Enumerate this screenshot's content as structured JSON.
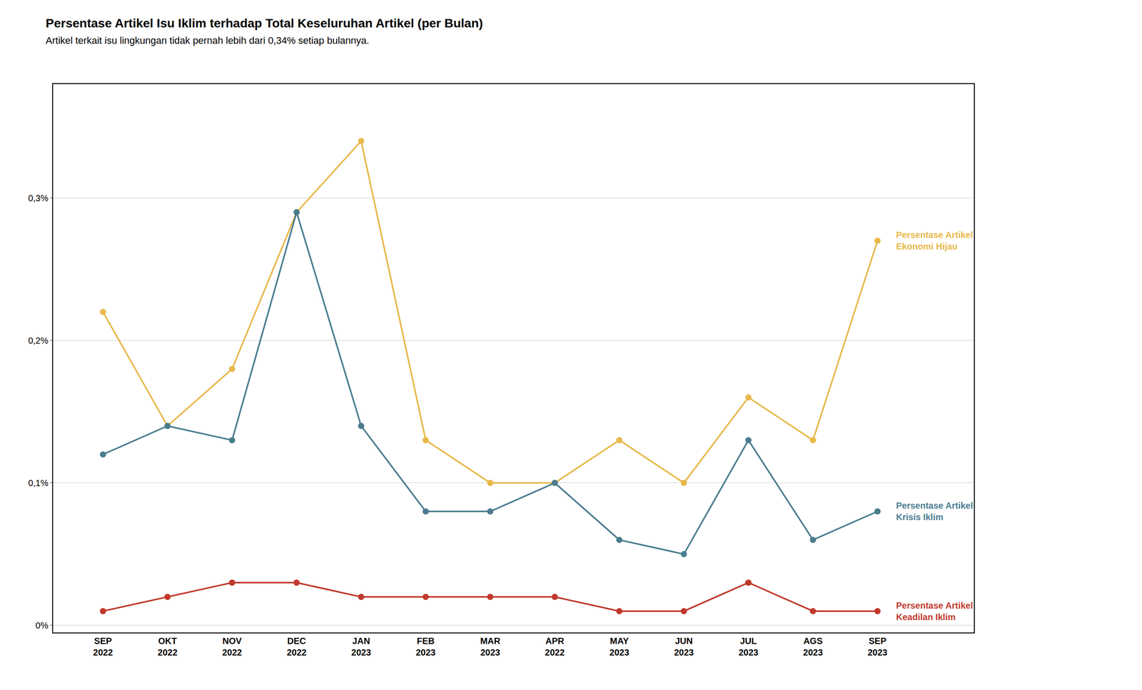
{
  "chart_data": {
    "type": "line",
    "title": "Persentase Artikel Isu Iklim terhadap Total Keseluruhan Artikel (per Bulan)",
    "subtitle": "Artikel terkait isu lingkungan tidak pernah lebih dari 0,34% setiap bulannya.",
    "categories": [
      "SEP\n2022",
      "OKT\n2022",
      "NOV\n2022",
      "DEC\n2022",
      "JAN\n2023",
      "FEB\n2023",
      "MAR\n2023",
      "APR\n2022",
      "MAY\n2023",
      "JUN\n2023",
      "JUL\n2023",
      "AGS\n2023",
      "SEP\n2023"
    ],
    "series": [
      {
        "name": "Persentase Artikel\nEkonomi Hijau",
        "color": "#E8B84B",
        "values": [
          0.0022,
          0.0014,
          0.0018,
          0.0029,
          0.0034,
          0.0013,
          0.001,
          0.001,
          0.0013,
          0.001,
          0.0016,
          0.0013,
          0.0027
        ]
      },
      {
        "name": "Persentase Artikel\nKrisis Iklim",
        "color": "#4A7C8E",
        "values": [
          0.0012,
          0.0014,
          0.0013,
          0.0029,
          0.0014,
          0.0008,
          0.0008,
          0.001,
          0.0006,
          0.0005,
          0.0013,
          0.0006,
          0.0008
        ]
      },
      {
        "name": "Persentase Artikel\nKeadilan Iklim",
        "color": "#C0392B",
        "values": [
          0.0001,
          0.0002,
          0.0003,
          0.0003,
          0.0002,
          0.0002,
          0.0002,
          0.0002,
          0.0001,
          0.0001,
          0.0003,
          0.0001,
          0.0001
        ]
      }
    ],
    "ylim": [
      -5e-05,
      0.0038
    ],
    "yticks": [
      {
        "value": 0.0,
        "label": "0%"
      },
      {
        "value": 0.001,
        "label": "0,1%"
      },
      {
        "value": 0.002,
        "label": "0,2%"
      },
      {
        "value": 0.003,
        "label": "0,3%"
      }
    ],
    "grid": true,
    "marker": "circle"
  }
}
